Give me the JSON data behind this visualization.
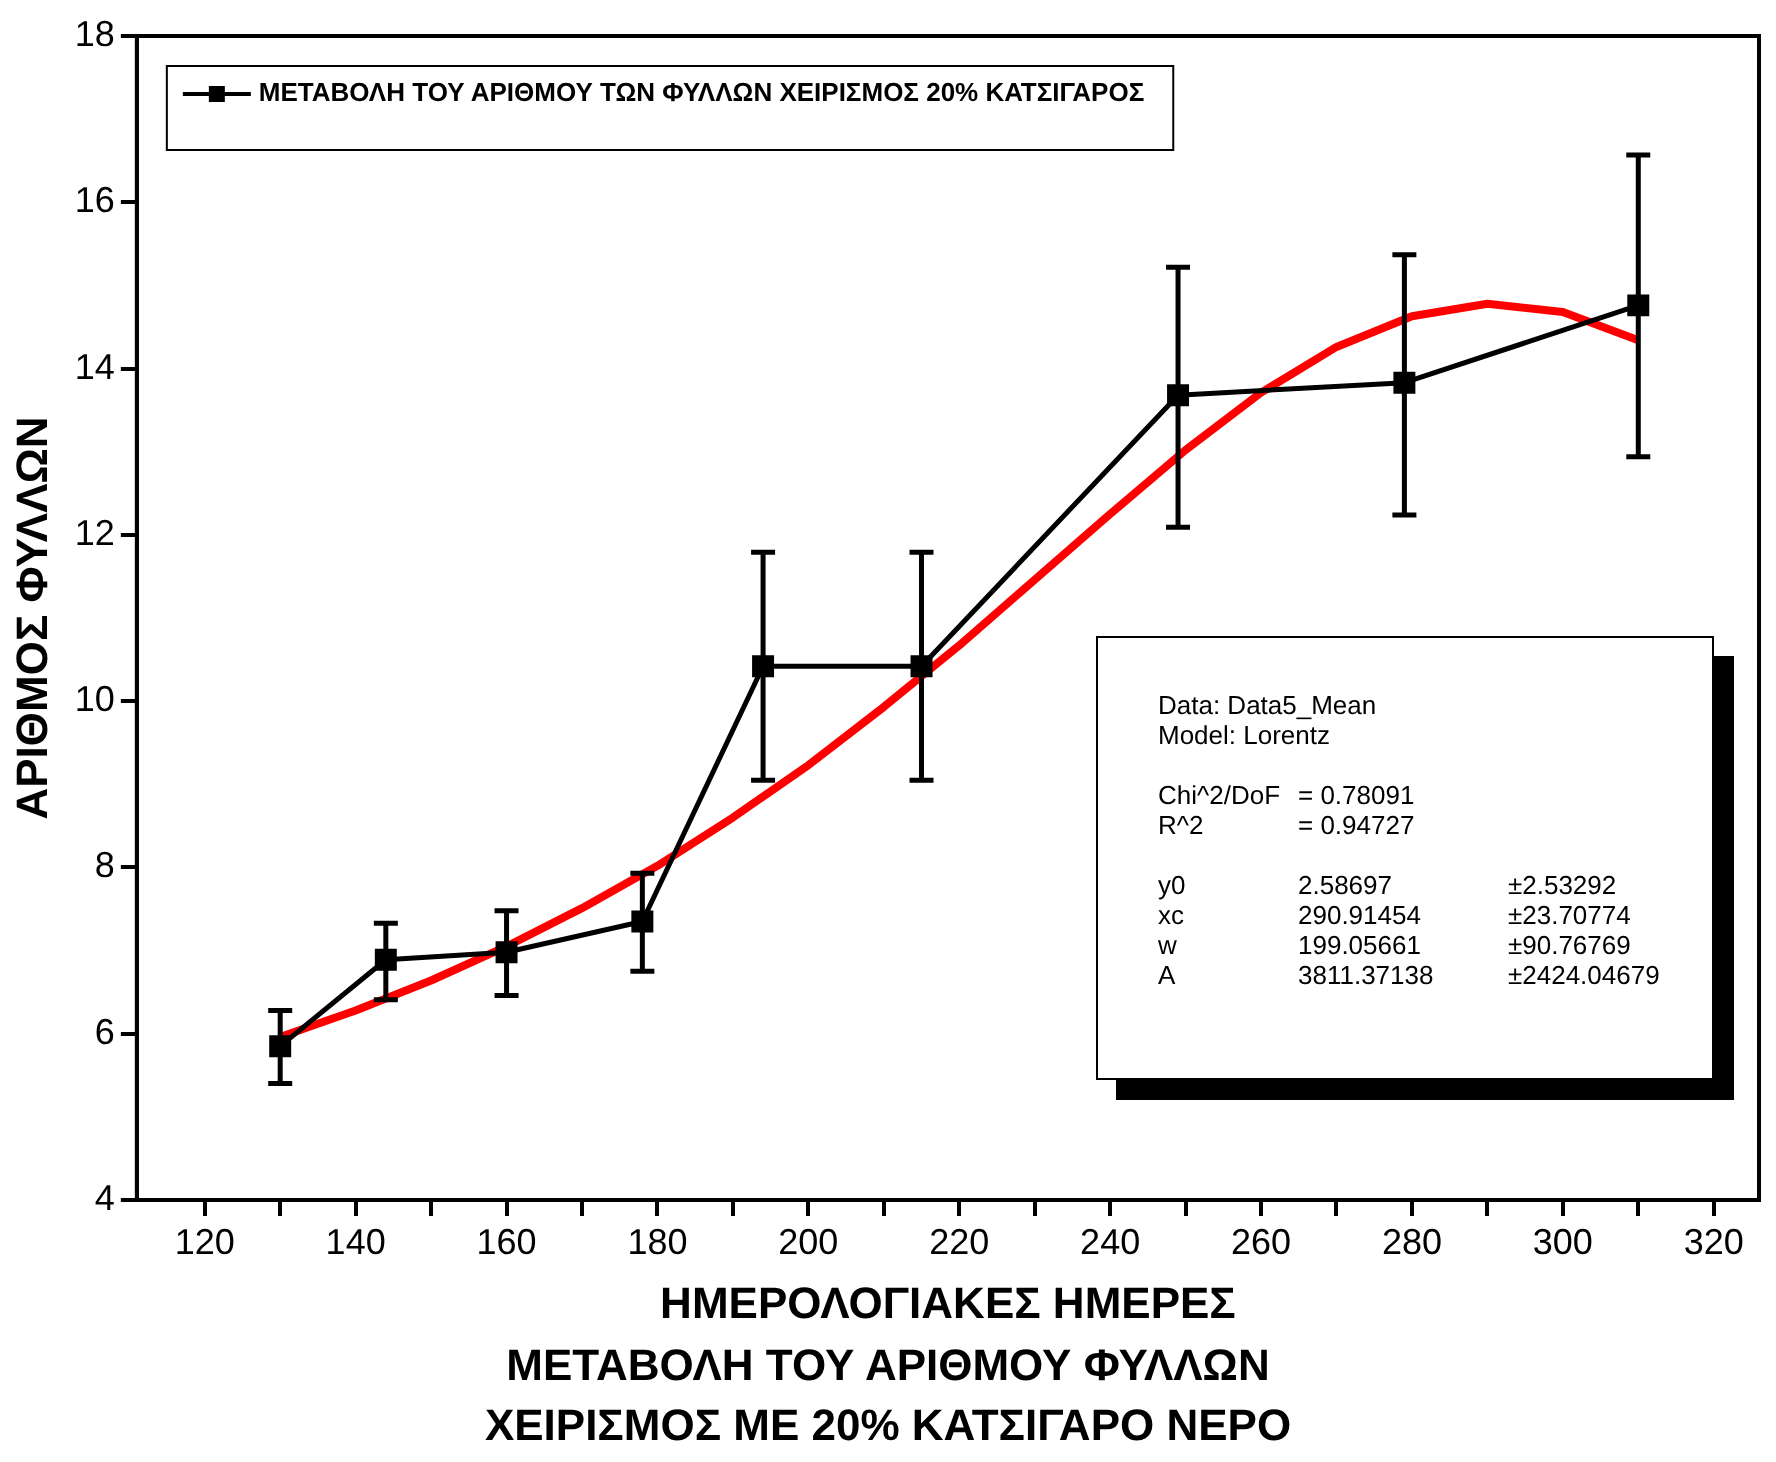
{
  "chart_data": {
    "type": "line",
    "xlabel": "ΗΜΕΡΟΛΟΓΙΑΚΕΣ ΗΜΕΡΕΣ",
    "title": "ΜΕΤΑΒΟΛΗ ΤΟΥ ΑΡΙΘΜΟΥ ΦΥΛΛΩΝ",
    "subtitle": "ΧΕΙΡΙΣΜΟΣ ΜΕ 20% ΚΑΤΣΙΓΑΡΟ ΝΕΡΟ",
    "ylabel": "ΑΡΙΘΜΟΣ ΦΥΛΛΩΝ",
    "xlim": [
      111,
      326
    ],
    "xticks": [
      120,
      {
        "value": 130,
        "label": null
      },
      140,
      {
        "value": 150,
        "label": null
      },
      160,
      {
        "value": 170,
        "label": null
      },
      180,
      {
        "value": 190,
        "label": null
      },
      200,
      {
        "value": 210,
        "label": null
      },
      220,
      {
        "value": 230,
        "label": null
      },
      240,
      {
        "value": 250,
        "label": null
      },
      260,
      {
        "value": 270,
        "label": null
      },
      280,
      {
        "value": 290,
        "label": null
      },
      300,
      {
        "value": 310,
        "label": null
      },
      320
    ],
    "ylim": [
      4,
      18
    ],
    "yticks": [
      4,
      6,
      8,
      10,
      12,
      14,
      16,
      18
    ],
    "grid": false,
    "legend": "top left",
    "series": [
      {
        "name": "ΜΕΤΑΒΟΛΗ ΤΟΥ ΑΡΙΘΜΟΥ ΤΩΝ ΦΥΛΛΩΝ ΧΕΙΡΙΣΜΟΣ 20% ΚΑΤΣΙΓΑΡΟΣ",
        "color": "#000000",
        "marker": "square",
        "x": [
          130,
          144,
          160,
          178,
          194,
          215,
          249,
          279,
          310
        ],
        "values": [
          5.85,
          6.89,
          6.98,
          7.35,
          10.42,
          10.42,
          13.68,
          13.83,
          14.76
        ],
        "errors": [
          [
            5.4,
            6.28
          ],
          [
            6.41,
            7.33
          ],
          [
            6.46,
            7.48
          ],
          [
            6.75,
            7.93
          ],
          [
            9.05,
            11.79
          ],
          [
            9.05,
            11.79
          ],
          [
            12.09,
            15.22
          ],
          [
            12.24,
            15.37
          ],
          [
            12.94,
            16.57
          ]
        ]
      },
      {
        "color": "#ff0000",
        "marker": "none",
        "x": [
          130,
          140,
          150,
          160,
          170,
          180,
          190,
          200,
          210,
          220,
          230,
          240,
          250,
          260,
          270,
          280,
          290,
          300,
          310
        ],
        "values": [
          5.96,
          6.28,
          6.64,
          7.05,
          7.51,
          8.02,
          8.6,
          9.23,
          9.93,
          10.67,
          11.46,
          12.25,
          13.02,
          13.71,
          14.26,
          14.63,
          14.78,
          14.68,
          14.34
        ]
      }
    ],
    "annotations": [
      "Data: Data5_Mean\nModel: Lorentz",
      "Chi^2/DoF\t= 0.78091\nR^2\t= 0.94727",
      "y0\t2.58697\t±2.53292\nxc\t290.91454\t±23.70774\nw\t199.05661\t±90.76769\nA\t3811.37138\t±2424.04679"
    ]
  }
}
